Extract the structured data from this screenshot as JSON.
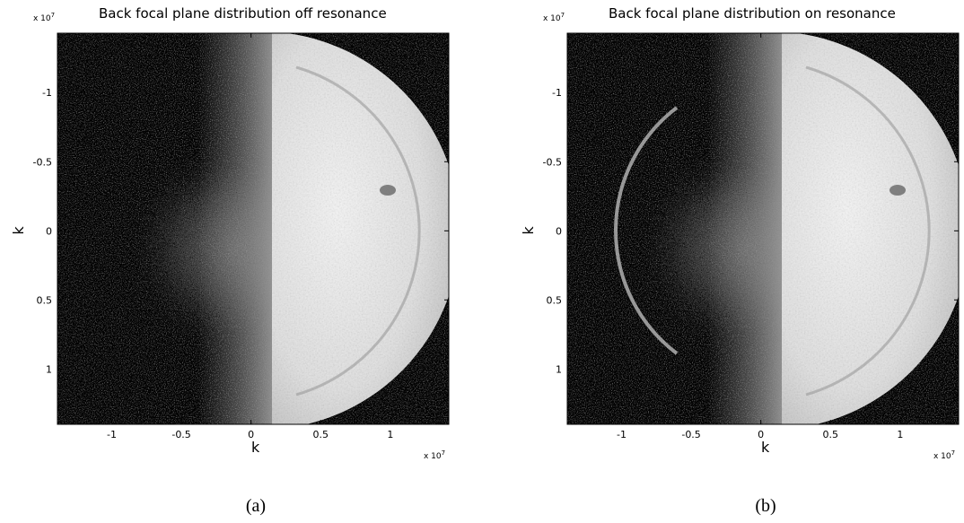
{
  "chart_data": [
    {
      "type": "image",
      "title": "Back focal plane distribution off resonance",
      "xlabel": "k",
      "ylabel": "k",
      "x_scale": "x 10",
      "x_scale_power": 7,
      "y_scale": "x 10",
      "y_scale_power": 7,
      "xlim": [
        -1.39,
        1.42
      ],
      "ylim": [
        -1.43,
        1.4
      ],
      "y_reversed": true,
      "xticks": [
        -1,
        -0.5,
        0,
        0.5,
        1
      ],
      "yticks": [
        -1,
        -0.5,
        0,
        0.5,
        1
      ],
      "caption": "(a)"
    },
    {
      "type": "image",
      "title": "Back focal plane distribution on resonance",
      "xlabel": "k",
      "ylabel": "k",
      "x_scale": "x 10",
      "x_scale_power": 7,
      "y_scale": "x 10",
      "y_scale_power": 7,
      "xlim": [
        -1.39,
        1.42
      ],
      "ylim": [
        -1.43,
        1.4
      ],
      "y_reversed": true,
      "xticks": [
        -1,
        -0.5,
        0,
        0.5,
        1
      ],
      "yticks": [
        -1,
        -0.5,
        0,
        0.5,
        1
      ],
      "caption": "(b)"
    }
  ]
}
